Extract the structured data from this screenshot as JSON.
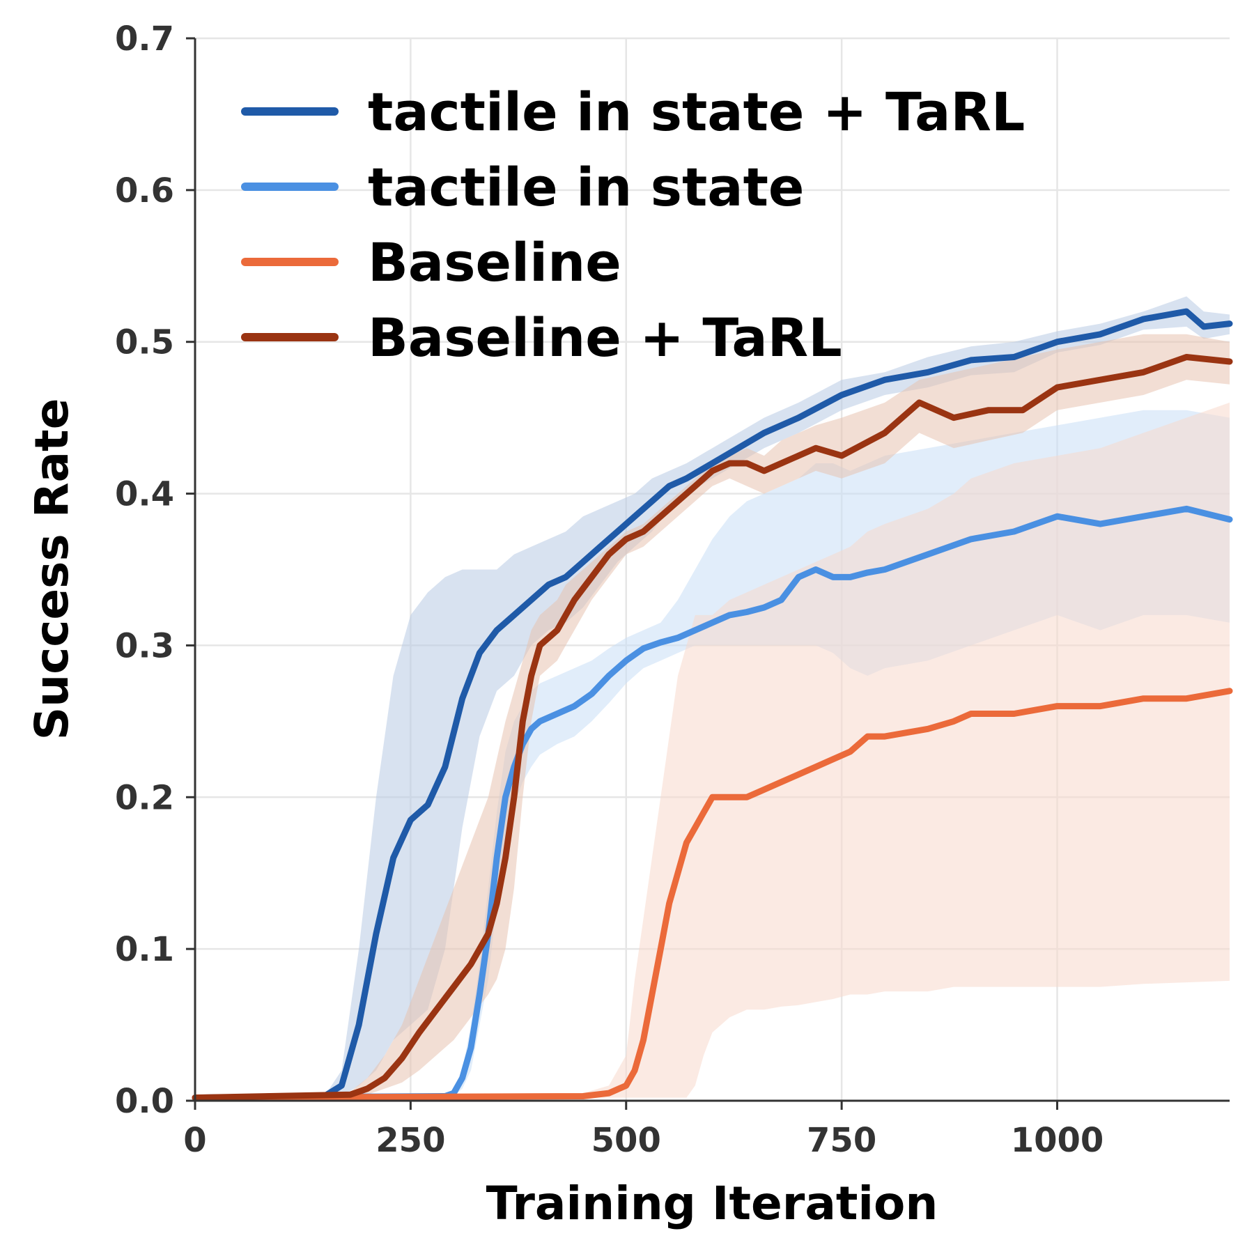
{
  "chart_data": {
    "type": "line",
    "title": "",
    "xlabel": "Training Iteration",
    "ylabel": "Success Rate",
    "xlim": [
      0,
      1200
    ],
    "ylim": [
      0,
      0.7
    ],
    "xticks": [
      0,
      250,
      500,
      750,
      1000
    ],
    "xtick_labels": [
      "0",
      "250",
      "500",
      "750",
      "1000"
    ],
    "yticks": [
      0.0,
      0.1,
      0.2,
      0.3,
      0.4,
      0.5,
      0.6,
      0.7
    ],
    "ytick_labels": [
      "0.0",
      "0.1",
      "0.2",
      "0.3",
      "0.4",
      "0.5",
      "0.6",
      "0.7"
    ],
    "grid": true,
    "legend_position": "top-left",
    "series": [
      {
        "name": "tactile in state + TaRL",
        "color": "#1f5aa8",
        "band_color": "#b8cbe3",
        "x": [
          0,
          150,
          170,
          190,
          210,
          230,
          250,
          270,
          290,
          310,
          330,
          350,
          370,
          390,
          410,
          430,
          450,
          470,
          490,
          510,
          530,
          550,
          570,
          600,
          630,
          660,
          700,
          750,
          800,
          850,
          900,
          950,
          1000,
          1050,
          1100,
          1150,
          1170,
          1200
        ],
        "y": [
          0.002,
          0.003,
          0.01,
          0.05,
          0.11,
          0.16,
          0.185,
          0.195,
          0.22,
          0.265,
          0.295,
          0.31,
          0.32,
          0.33,
          0.34,
          0.345,
          0.355,
          0.365,
          0.375,
          0.385,
          0.395,
          0.405,
          0.41,
          0.42,
          0.43,
          0.44,
          0.45,
          0.465,
          0.475,
          0.48,
          0.488,
          0.49,
          0.5,
          0.505,
          0.515,
          0.52,
          0.51,
          0.512
        ],
        "upper": [
          0.002,
          0.003,
          0.02,
          0.1,
          0.2,
          0.28,
          0.32,
          0.335,
          0.345,
          0.35,
          0.35,
          0.35,
          0.36,
          0.365,
          0.37,
          0.375,
          0.385,
          0.39,
          0.395,
          0.4,
          0.41,
          0.415,
          0.42,
          0.43,
          0.44,
          0.45,
          0.46,
          0.475,
          0.48,
          0.49,
          0.497,
          0.5,
          0.507,
          0.512,
          0.52,
          0.53,
          0.52,
          0.518
        ],
        "lower": [
          0.002,
          0.002,
          0.003,
          0.01,
          0.02,
          0.04,
          0.05,
          0.06,
          0.1,
          0.18,
          0.24,
          0.27,
          0.28,
          0.3,
          0.31,
          0.315,
          0.325,
          0.34,
          0.355,
          0.365,
          0.375,
          0.39,
          0.4,
          0.41,
          0.42,
          0.43,
          0.44,
          0.455,
          0.465,
          0.47,
          0.478,
          0.48,
          0.493,
          0.498,
          0.508,
          0.51,
          0.502,
          0.505
        ]
      },
      {
        "name": "tactile in state",
        "color": "#4a90e2",
        "band_color": "#c9def6",
        "x": [
          0,
          290,
          300,
          310,
          320,
          330,
          340,
          350,
          360,
          370,
          380,
          390,
          400,
          420,
          440,
          460,
          480,
          500,
          520,
          540,
          560,
          580,
          600,
          620,
          640,
          660,
          680,
          700,
          720,
          740,
          760,
          780,
          800,
          850,
          900,
          950,
          1000,
          1050,
          1100,
          1150,
          1200
        ],
        "y": [
          0.002,
          0.003,
          0.005,
          0.015,
          0.035,
          0.07,
          0.11,
          0.16,
          0.2,
          0.22,
          0.235,
          0.245,
          0.25,
          0.255,
          0.26,
          0.268,
          0.28,
          0.29,
          0.298,
          0.302,
          0.305,
          0.31,
          0.315,
          0.32,
          0.322,
          0.325,
          0.33,
          0.345,
          0.35,
          0.345,
          0.345,
          0.348,
          0.35,
          0.36,
          0.37,
          0.375,
          0.385,
          0.38,
          0.385,
          0.39,
          0.383
        ],
        "upper": [
          0.002,
          0.004,
          0.006,
          0.02,
          0.05,
          0.09,
          0.14,
          0.19,
          0.23,
          0.25,
          0.26,
          0.27,
          0.275,
          0.28,
          0.285,
          0.29,
          0.298,
          0.305,
          0.31,
          0.315,
          0.33,
          0.35,
          0.37,
          0.385,
          0.395,
          0.4,
          0.405,
          0.41,
          0.42,
          0.42,
          0.415,
          0.42,
          0.425,
          0.43,
          0.435,
          0.44,
          0.445,
          0.45,
          0.455,
          0.455,
          0.45
        ],
        "lower": [
          0.002,
          0.002,
          0.003,
          0.008,
          0.02,
          0.05,
          0.08,
          0.13,
          0.17,
          0.195,
          0.21,
          0.22,
          0.228,
          0.235,
          0.24,
          0.25,
          0.262,
          0.275,
          0.285,
          0.29,
          0.295,
          0.3,
          0.3,
          0.3,
          0.3,
          0.3,
          0.3,
          0.3,
          0.3,
          0.295,
          0.285,
          0.28,
          0.285,
          0.29,
          0.3,
          0.31,
          0.32,
          0.31,
          0.32,
          0.32,
          0.315
        ]
      },
      {
        "name": "Baseline",
        "color": "#eb6a3a",
        "band_color": "#f8d9cc",
        "x": [
          0,
          450,
          480,
          500,
          510,
          520,
          530,
          540,
          550,
          560,
          570,
          580,
          590,
          600,
          610,
          620,
          640,
          660,
          680,
          700,
          720,
          740,
          760,
          780,
          800,
          850,
          880,
          900,
          950,
          1000,
          1050,
          1100,
          1150,
          1200
        ],
        "y": [
          0.002,
          0.003,
          0.005,
          0.01,
          0.02,
          0.04,
          0.07,
          0.1,
          0.13,
          0.15,
          0.17,
          0.18,
          0.19,
          0.2,
          0.2,
          0.2,
          0.2,
          0.205,
          0.21,
          0.215,
          0.22,
          0.225,
          0.23,
          0.24,
          0.24,
          0.245,
          0.25,
          0.255,
          0.255,
          0.26,
          0.26,
          0.265,
          0.265,
          0.27
        ],
        "upper": [
          0.002,
          0.005,
          0.01,
          0.03,
          0.08,
          0.12,
          0.16,
          0.2,
          0.24,
          0.28,
          0.3,
          0.32,
          0.32,
          0.32,
          0.325,
          0.33,
          0.335,
          0.34,
          0.345,
          0.35,
          0.355,
          0.36,
          0.365,
          0.375,
          0.38,
          0.39,
          0.4,
          0.41,
          0.42,
          0.425,
          0.43,
          0.44,
          0.45,
          0.46
        ],
        "lower": [
          0.002,
          0.002,
          0.002,
          0.002,
          0.002,
          0.002,
          0.002,
          0.002,
          0.002,
          0.002,
          0.002,
          0.01,
          0.03,
          0.045,
          0.05,
          0.055,
          0.06,
          0.06,
          0.062,
          0.063,
          0.065,
          0.067,
          0.07,
          0.07,
          0.072,
          0.072,
          0.075,
          0.075,
          0.075,
          0.075,
          0.075,
          0.077,
          0.078,
          0.079
        ]
      },
      {
        "name": "Baseline + TaRL",
        "color": "#9a3412",
        "band_color": "#e8c2b0",
        "x": [
          0,
          180,
          200,
          220,
          240,
          260,
          280,
          300,
          320,
          340,
          350,
          360,
          370,
          380,
          390,
          400,
          410,
          420,
          430,
          440,
          460,
          480,
          500,
          520,
          540,
          560,
          580,
          600,
          620,
          640,
          660,
          680,
          700,
          720,
          750,
          800,
          840,
          880,
          920,
          960,
          1000,
          1050,
          1100,
          1150,
          1200
        ],
        "y": [
          0.002,
          0.004,
          0.008,
          0.015,
          0.028,
          0.045,
          0.06,
          0.075,
          0.09,
          0.11,
          0.13,
          0.16,
          0.2,
          0.25,
          0.28,
          0.3,
          0.305,
          0.31,
          0.32,
          0.33,
          0.345,
          0.36,
          0.37,
          0.375,
          0.385,
          0.395,
          0.405,
          0.415,
          0.42,
          0.42,
          0.415,
          0.42,
          0.425,
          0.43,
          0.425,
          0.44,
          0.46,
          0.45,
          0.455,
          0.455,
          0.47,
          0.475,
          0.48,
          0.49,
          0.487
        ],
        "upper": [
          0.002,
          0.006,
          0.015,
          0.03,
          0.05,
          0.08,
          0.11,
          0.14,
          0.17,
          0.2,
          0.225,
          0.25,
          0.27,
          0.29,
          0.31,
          0.32,
          0.325,
          0.33,
          0.34,
          0.345,
          0.355,
          0.365,
          0.375,
          0.38,
          0.39,
          0.4,
          0.41,
          0.42,
          0.425,
          0.43,
          0.425,
          0.435,
          0.44,
          0.445,
          0.45,
          0.46,
          0.475,
          0.48,
          0.485,
          0.49,
          0.495,
          0.5,
          0.505,
          0.505,
          0.5
        ],
        "lower": [
          0.002,
          0.002,
          0.004,
          0.008,
          0.012,
          0.02,
          0.03,
          0.04,
          0.055,
          0.07,
          0.08,
          0.1,
          0.14,
          0.2,
          0.25,
          0.28,
          0.285,
          0.29,
          0.3,
          0.31,
          0.33,
          0.345,
          0.36,
          0.365,
          0.375,
          0.385,
          0.395,
          0.405,
          0.41,
          0.405,
          0.4,
          0.405,
          0.41,
          0.415,
          0.41,
          0.42,
          0.44,
          0.43,
          0.435,
          0.44,
          0.455,
          0.46,
          0.465,
          0.475,
          0.472
        ]
      }
    ]
  }
}
